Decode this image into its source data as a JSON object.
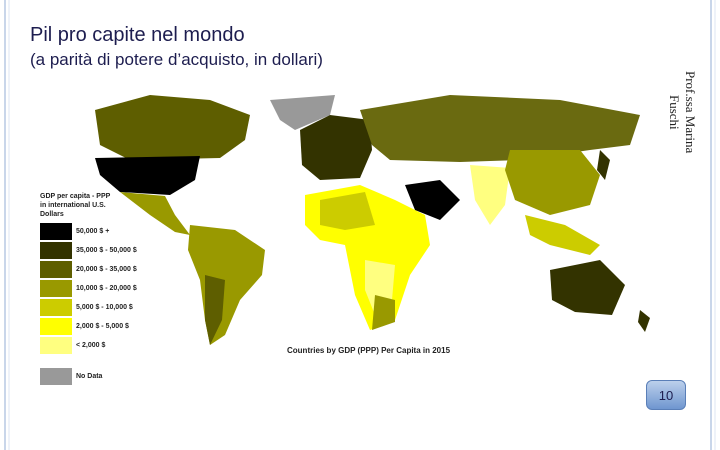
{
  "header": {
    "title": "Pil pro capite nel mondo",
    "subtitle": "(a parità di potere d’acquisto, in dollari)",
    "author": "Prof.ssa Marina Fuschi"
  },
  "map": {
    "caption": "Countries by GDP (PPP) Per Capita in 2015",
    "legend": {
      "title": "GDP per capita - PPP in international U.S. Dollars",
      "items": [
        {
          "label": "50,000 $ +",
          "color": "#000000"
        },
        {
          "label": "35,000 $ - 50,000 $",
          "color": "#333300"
        },
        {
          "label": "20,000 $ - 35,000 $",
          "color": "#5e5e00"
        },
        {
          "label": "10,000 $ - 20,000 $",
          "color": "#999900"
        },
        {
          "label": "5,000 $ - 10,000 $",
          "color": "#cccc00"
        },
        {
          "label": "2,000 $ - 5,000 $",
          "color": "#ffff00"
        },
        {
          "label": "< 2,000 $",
          "color": "#ffff80"
        },
        {
          "label": "No Data",
          "color": "#999999"
        }
      ]
    }
  },
  "footer": {
    "page_number": "10"
  }
}
